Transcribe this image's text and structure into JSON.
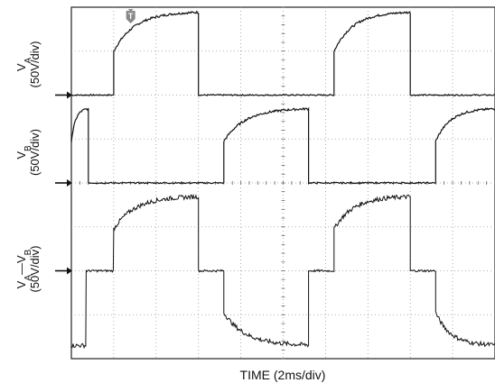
{
  "chart_data": {
    "type": "line",
    "x_divisions": 10,
    "y_divisions": 8,
    "grid": "dotted",
    "time_per_div": "2ms/div",
    "xlabel": "TIME (2ms/div)",
    "trigger_marker": "T",
    "series": [
      {
        "name": "VA",
        "label_main": "V",
        "label_sub": "A",
        "scale": "(50V/div)",
        "ground_div": 6.0,
        "low_level_div": 0,
        "high_start_div": 1.0,
        "high_end_div": 1.9,
        "segments": [
          {
            "x_start": 0.0,
            "x_end": 1.0,
            "type": "low"
          },
          {
            "x_start": 1.0,
            "x_end": 3.0,
            "type": "high"
          },
          {
            "x_start": 3.0,
            "x_end": 6.2,
            "type": "low"
          },
          {
            "x_start": 6.2,
            "x_end": 8.0,
            "type": "high"
          },
          {
            "x_start": 8.0,
            "x_end": 10.0,
            "type": "low"
          }
        ]
      },
      {
        "name": "VB",
        "label_main": "V",
        "label_sub": "B",
        "scale": "(50V/div)",
        "ground_div": 4.0,
        "low_level_div": 0,
        "high_start_div": 0.95,
        "high_end_div": 1.7,
        "segments": [
          {
            "x_start": 0.0,
            "x_end": 0.4,
            "type": "high"
          },
          {
            "x_start": 0.4,
            "x_end": 3.6,
            "type": "low"
          },
          {
            "x_start": 3.6,
            "x_end": 5.6,
            "type": "high"
          },
          {
            "x_start": 5.6,
            "x_end": 8.6,
            "type": "low"
          },
          {
            "x_start": 8.6,
            "x_end": 10.0,
            "type": "high"
          }
        ]
      },
      {
        "name": "VA-VB",
        "label_main": "V",
        "label_sub": "A",
        "label_mid": "—V",
        "label_sub2": "B",
        "scale": "(50V/div)",
        "ground_div": 2.0,
        "segments": [
          {
            "x_start": 0.0,
            "x_end": 0.35,
            "type": "neg_tail"
          },
          {
            "x_start": 0.35,
            "x_end": 1.0,
            "type": "zero"
          },
          {
            "x_start": 1.0,
            "x_end": 3.0,
            "type": "pos_rise"
          },
          {
            "x_start": 3.0,
            "x_end": 3.6,
            "type": "zero"
          },
          {
            "x_start": 3.6,
            "x_end": 5.6,
            "type": "neg_rise"
          },
          {
            "x_start": 5.6,
            "x_end": 6.2,
            "type": "zero"
          },
          {
            "x_start": 6.2,
            "x_end": 8.0,
            "type": "pos_rise"
          },
          {
            "x_start": 8.0,
            "x_end": 8.6,
            "type": "zero"
          },
          {
            "x_start": 8.6,
            "x_end": 10.0,
            "type": "neg_rise"
          }
        ],
        "pos_start_div": 0.95,
        "pos_end_div": 1.7,
        "neg_start_div": -0.95,
        "neg_end_div": -1.7
      }
    ]
  }
}
